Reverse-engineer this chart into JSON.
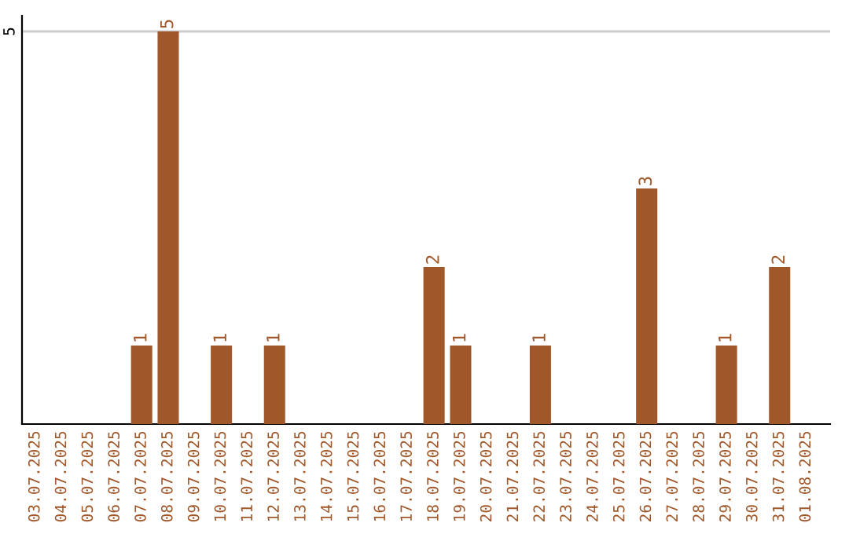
{
  "chart_data": {
    "type": "bar",
    "categories": [
      "03.07.2025",
      "04.07.2025",
      "05.07.2025",
      "06.07.2025",
      "07.07.2025",
      "08.07.2025",
      "09.07.2025",
      "10.07.2025",
      "11.07.2025",
      "12.07.2025",
      "13.07.2025",
      "14.07.2025",
      "15.07.2025",
      "16.07.2025",
      "17.07.2025",
      "18.07.2025",
      "19.07.2025",
      "20.07.2025",
      "21.07.2025",
      "22.07.2025",
      "23.07.2025",
      "24.07.2025",
      "25.07.2025",
      "26.07.2025",
      "27.07.2025",
      "28.07.2025",
      "29.07.2025",
      "30.07.2025",
      "31.07.2025",
      "01.08.2025"
    ],
    "values": [
      0,
      0,
      0,
      0,
      1,
      5,
      0,
      1,
      0,
      1,
      0,
      0,
      0,
      0,
      0,
      2,
      1,
      0,
      0,
      1,
      0,
      0,
      0,
      3,
      0,
      0,
      1,
      0,
      2,
      0
    ],
    "value_labels": [
      null,
      null,
      null,
      null,
      "1",
      "5",
      null,
      "1",
      null,
      "1",
      null,
      null,
      null,
      null,
      null,
      "2",
      "1",
      null,
      null,
      "1",
      null,
      null,
      null,
      "3",
      null,
      null,
      "1",
      null,
      "2",
      null
    ],
    "color": "#a0572a",
    "ylim": [
      0,
      5.2
    ],
    "yticks": [
      5
    ],
    "grid": "y"
  }
}
